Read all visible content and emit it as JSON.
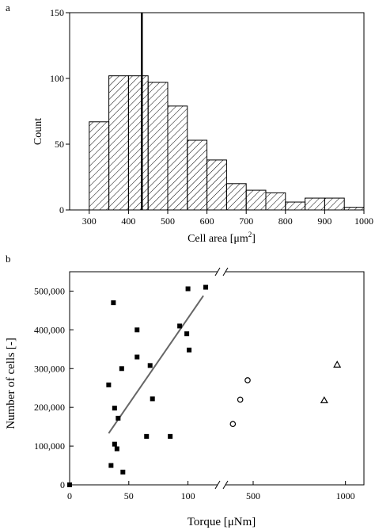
{
  "chart_data": [
    {
      "panel": "a",
      "type": "bar",
      "panel_label": "a",
      "xlabel": "Cell area [μm",
      "xlabel_superscript": "2",
      "xlabel_suffix": "]",
      "ylabel": "Count",
      "bin_edges": [
        300,
        350,
        400,
        450,
        500,
        550,
        600,
        650,
        700,
        750,
        800,
        850,
        900,
        950,
        1000
      ],
      "values": [
        67,
        102,
        102,
        97,
        79,
        53,
        38,
        20,
        15,
        13,
        6,
        9,
        9,
        2
      ],
      "vertical_line_x": 434,
      "xlim": [
        250,
        1000
      ],
      "ylim": [
        0,
        150
      ],
      "xticks": [
        "300",
        "400",
        "500",
        "600",
        "700",
        "800",
        "900",
        "1000"
      ],
      "yticks": [
        "0",
        "50",
        "100",
        "150"
      ],
      "fill": "diagonal-hatch",
      "grid": false
    },
    {
      "panel": "b",
      "type": "scatter",
      "panel_label": "b",
      "xlabel": "Torque [μNm]",
      "ylabel": "Number of cells [-]",
      "x_axis_broken": true,
      "xlim_left": [
        0,
        125
      ],
      "xlim_right": [
        350,
        1100
      ],
      "ylim": [
        0,
        550000
      ],
      "xticks_left": [
        "0",
        "50",
        "100"
      ],
      "xticks_right": [
        "500",
        "1000"
      ],
      "yticks": [
        "0",
        "100,000",
        "200,000",
        "300,000",
        "400,000",
        "500,000"
      ],
      "series": [
        {
          "marker": "square",
          "points": [
            [
              0,
              0
            ],
            [
              35,
              50000
            ],
            [
              37,
              470000
            ],
            [
              38,
              105000
            ],
            [
              38,
              198000
            ],
            [
              40,
              93000
            ],
            [
              41,
              172000
            ],
            [
              44,
              300000
            ],
            [
              45,
              33000
            ],
            [
              33,
              258000
            ],
            [
              57,
              400000
            ],
            [
              57,
              330000
            ],
            [
              65,
              125000
            ],
            [
              68,
              308000
            ],
            [
              70,
              222000
            ],
            [
              85,
              125000
            ],
            [
              93,
              410000
            ],
            [
              99,
              390000
            ],
            [
              100,
              506000
            ],
            [
              101,
              348000
            ],
            [
              115,
              510000
            ]
          ]
        },
        {
          "marker": "circle",
          "points": [
            [
              390,
              157000
            ],
            [
              430,
              220000
            ],
            [
              470,
              270000
            ]
          ]
        },
        {
          "marker": "triangle",
          "points": [
            [
              885,
              218000
            ],
            [
              955,
              310000
            ]
          ]
        }
      ],
      "fit_line": [
        [
          33,
          133000
        ],
        [
          113,
          488000
        ]
      ],
      "grid": false
    }
  ]
}
